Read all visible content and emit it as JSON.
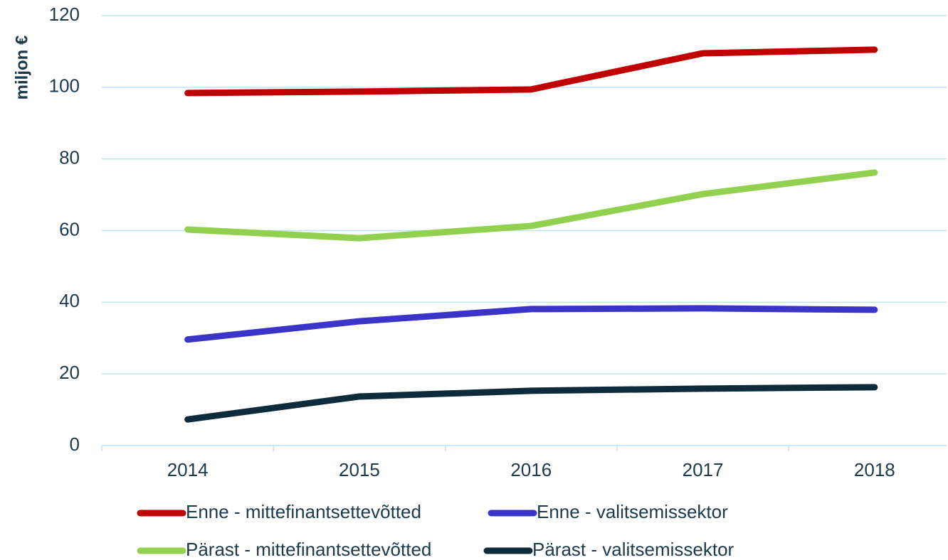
{
  "chart_data": {
    "type": "line",
    "y_label": "miljon €",
    "categories": [
      "2014",
      "2015",
      "2016",
      "2017",
      "2018"
    ],
    "series": [
      {
        "name": "Enne - mittefinantsettevõtted",
        "color": "#c00000",
        "values": [
          98.4,
          98.8,
          99.4,
          109.5,
          110.5
        ]
      },
      {
        "name": "Enne - valitsemissektor",
        "color": "#3a34c8",
        "values": [
          29.6,
          34.7,
          38.1,
          38.3,
          37.9
        ]
      },
      {
        "name": "Pärast - mittefinantsettevõtted",
        "color": "#92d050",
        "values": [
          60.3,
          57.9,
          61.3,
          70.2,
          76.2
        ]
      },
      {
        "name": "Pärast - valitsemissektor",
        "color": "#0d2b3a",
        "values": [
          7.3,
          13.7,
          15.3,
          15.9,
          16.3
        ]
      }
    ],
    "ylim": [
      0,
      120
    ],
    "yticks": [
      0,
      20,
      40,
      60,
      80,
      100,
      120
    ],
    "grid": true
  }
}
